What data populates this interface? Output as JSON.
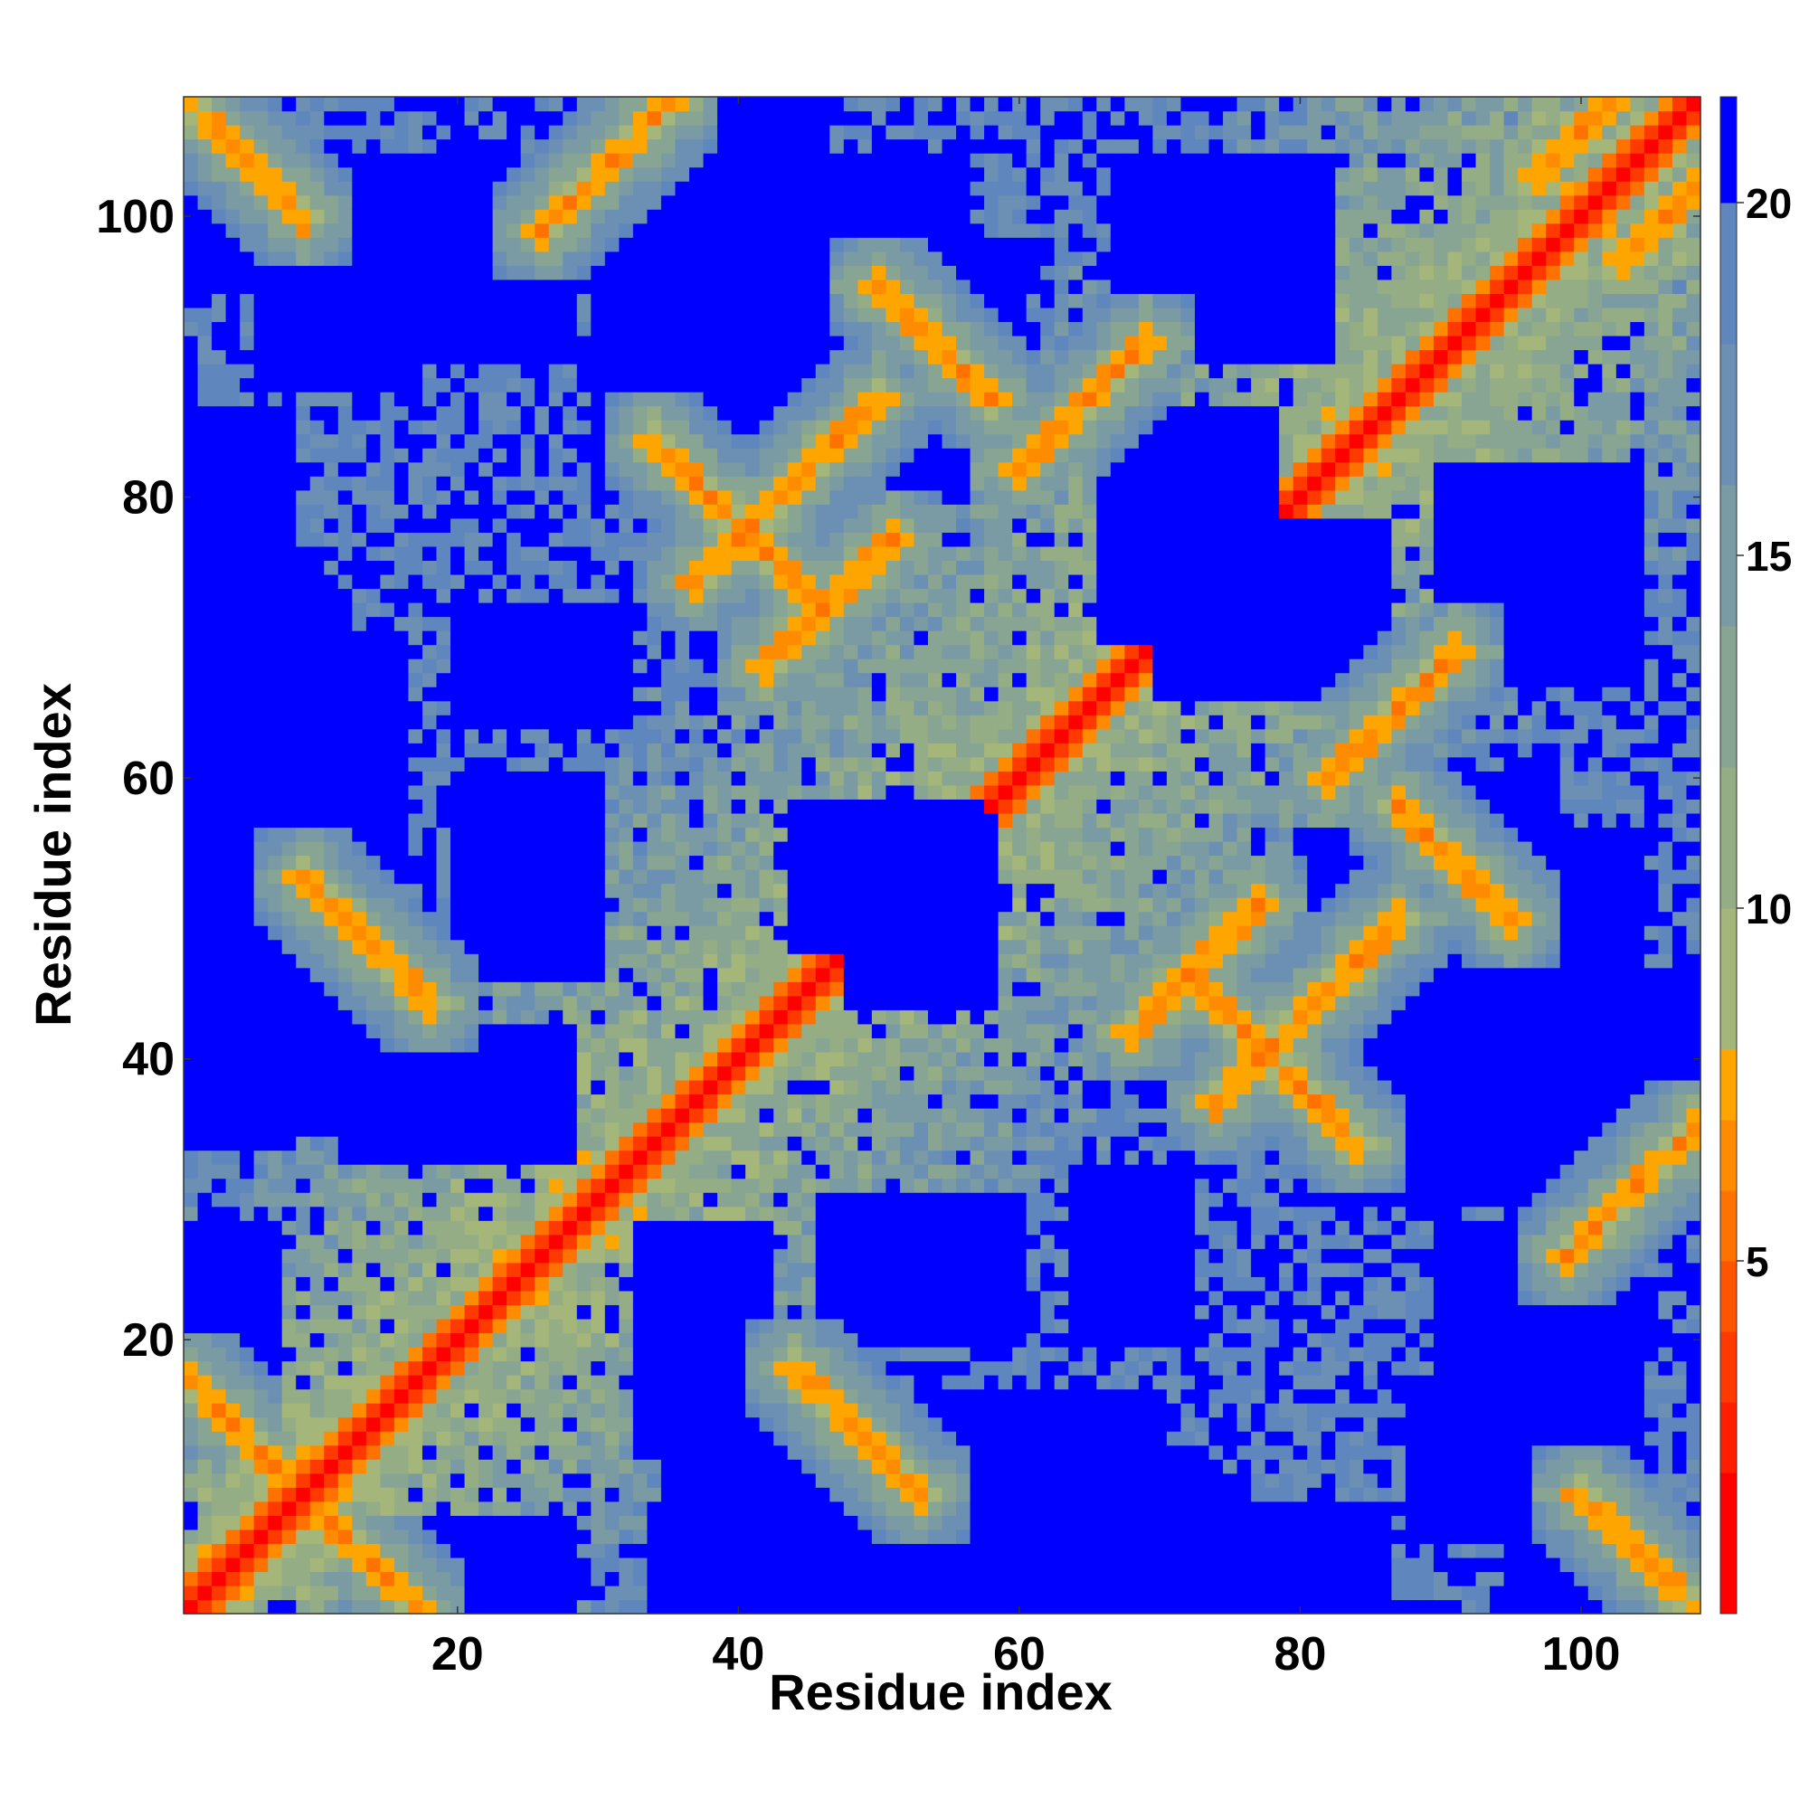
{
  "chart_data": {
    "type": "heatmap",
    "title": "",
    "xlabel": "Residue index",
    "ylabel": "Residue index",
    "n_residues": 108,
    "xlim": [
      1,
      108
    ],
    "ylim": [
      1,
      108
    ],
    "x_ticks": [
      20,
      40,
      60,
      80,
      100
    ],
    "x_tick_labels": [
      "20",
      "40",
      "60",
      "80",
      "100"
    ],
    "y_ticks": [
      20,
      40,
      60,
      80,
      100
    ],
    "y_tick_labels": [
      "20",
      "40",
      "60",
      "80",
      "100"
    ],
    "colorbar": {
      "range": [
        0,
        21.5
      ],
      "ticks": [
        5,
        10,
        15,
        20
      ],
      "tick_labels": [
        "5",
        "10",
        "15",
        "20"
      ],
      "bands": [
        {
          "from": 0,
          "to": 2,
          "color": "#ff0000"
        },
        {
          "from": 2,
          "to": 3,
          "color": "#ff1f00"
        },
        {
          "from": 3,
          "to": 4,
          "color": "#ff3a00"
        },
        {
          "from": 4,
          "to": 5,
          "color": "#ff5500"
        },
        {
          "from": 5,
          "to": 6,
          "color": "#ff7200"
        },
        {
          "from": 6,
          "to": 7,
          "color": "#ff8c00"
        },
        {
          "from": 7,
          "to": 8,
          "color": "#ffa500"
        },
        {
          "from": 8,
          "to": 10,
          "color": "#a4b679"
        },
        {
          "from": 10,
          "to": 12,
          "color": "#95ad84"
        },
        {
          "from": 12,
          "to": 14,
          "color": "#88a593"
        },
        {
          "from": 14,
          "to": 16,
          "color": "#7a9ba3"
        },
        {
          "from": 16,
          "to": 18,
          "color": "#6b90b3"
        },
        {
          "from": 18,
          "to": 20,
          "color": "#5f86bd"
        },
        {
          "from": 20,
          "to": 21.5,
          "color": "#0000ff"
        }
      ]
    },
    "secondary_structure_contacts": [
      {
        "kind": "antiparallel",
        "i": 1,
        "j": 17,
        "len": 13
      },
      {
        "kind": "antiparallel",
        "i": 9,
        "j": 53,
        "len": 10
      },
      {
        "kind": "antiparallel",
        "i": 34,
        "j": 84,
        "len": 13
      },
      {
        "kind": "antiparallel",
        "i": 1,
        "j": 108,
        "len": 9
      },
      {
        "kind": "antiparallel",
        "i": 50,
        "j": 95,
        "len": 9
      },
      {
        "kind": "parallel",
        "i": 37,
        "j": 74,
        "len": 14
      },
      {
        "kind": "parallel",
        "i": 60,
        "j": 82,
        "len": 10
      },
      {
        "kind": "parallel",
        "i": 68,
        "j": 42,
        "len": 10
      },
      {
        "kind": "parallel",
        "i": 97,
        "j": 103,
        "len": 6
      },
      {
        "kind": "parallel",
        "i": 26,
        "j": 99,
        "len": 10
      }
    ],
    "far_domains": [
      [
        1,
        16,
        35,
        70
      ],
      [
        1,
        8,
        75,
        85
      ],
      [
        1,
        8,
        95,
        100
      ],
      [
        12,
        28,
        1,
        7
      ],
      [
        12,
        28,
        33,
        42
      ],
      [
        12,
        28,
        90,
        104
      ],
      [
        20,
        32,
        64,
        72
      ],
      [
        30,
        45,
        80,
        108
      ],
      [
        34,
        44,
        1,
        8
      ],
      [
        44,
        58,
        1,
        7
      ],
      [
        44,
        56,
        90,
        104
      ],
      [
        46,
        60,
        20,
        30
      ],
      [
        48,
        58,
        44,
        57
      ],
      [
        58,
        70,
        1,
        10
      ],
      [
        64,
        76,
        1,
        10
      ],
      [
        66,
        78,
        70,
        86
      ],
      [
        70,
        82,
        90,
        104
      ],
      [
        76,
        86,
        1,
        7
      ],
      [
        80,
        92,
        44,
        56
      ],
      [
        86,
        98,
        54,
        60
      ],
      [
        88,
        100,
        6,
        17
      ],
      [
        90,
        104,
        67,
        80
      ],
      [
        98,
        108,
        1,
        8
      ],
      [
        98,
        108,
        36,
        46
      ]
    ],
    "grid": false,
    "legend": "colorbar-right"
  }
}
